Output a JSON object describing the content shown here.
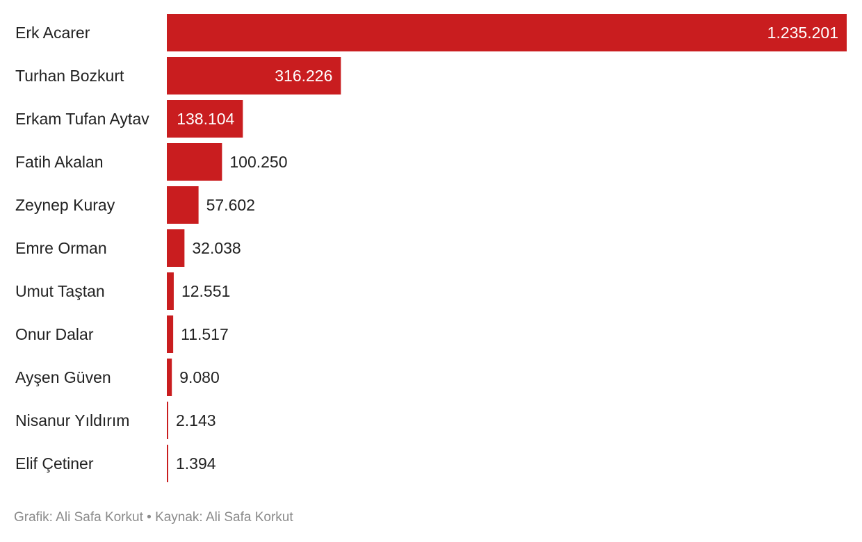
{
  "chart_data": {
    "type": "bar",
    "orientation": "horizontal",
    "categories": [
      "Erk Acarer",
      "Turhan Bozkurt",
      "Erkam Tufan Aytav",
      "Fatih Akalan",
      "Zeynep Kuray",
      "Emre Orman",
      "Umut Taştan",
      "Onur Dalar",
      "Ayşen Güven",
      "Nisanur Yıldırım",
      "Elif Çetiner"
    ],
    "values": [
      1235201,
      316226,
      138104,
      100250,
      57602,
      32038,
      12551,
      11517,
      9080,
      2143,
      1394
    ],
    "value_labels": [
      "1.235.201",
      "316.226",
      "138.104",
      "100.250",
      "57.602",
      "32.038",
      "12.551",
      "11.517",
      "9.080",
      "2.143",
      "1.394"
    ],
    "xlim": [
      0,
      1235201
    ],
    "grid": false,
    "legend": "none",
    "bar_color": "#c91d1f"
  },
  "footer": {
    "text": "Grafik: Ali Safa Korkut • Kaynak: Ali Safa Korkut"
  }
}
